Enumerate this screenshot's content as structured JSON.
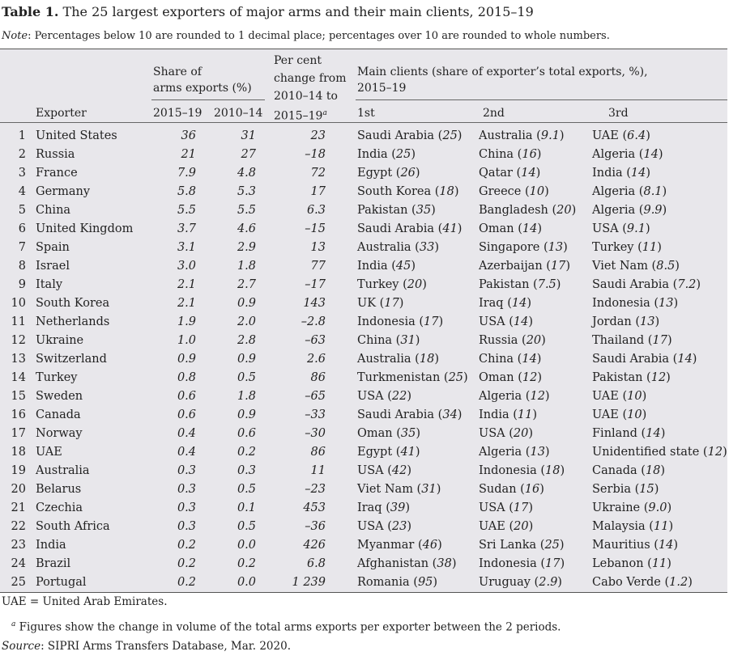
{
  "title": {
    "label": "Table 1.",
    "text": " The 25 largest exporters of major arms and their main clients, 2015–19"
  },
  "note": {
    "label": "Note",
    "text": ": Percentages below 10 are rounded to 1 decimal place; percentages over 10 are rounded to whole numbers."
  },
  "headers": {
    "share_group_line1": "Share of",
    "share_group_line2": "arms exports (%)",
    "change_line1": "Per cent",
    "change_line2": "change from",
    "change_line3": "2010–14 to",
    "change_line4": "2015–19",
    "change_sup": "a",
    "clients_line1": "Main clients (share of exporter’s total exports, %),",
    "clients_line2": "2015–19",
    "exporter": "Exporter",
    "period1": "2015–19",
    "period2": "2010–14",
    "first": "1st",
    "second": "2nd",
    "third": "3rd"
  },
  "rows": [
    {
      "rank": "1",
      "exporter": "United States",
      "share_2015_19": "36",
      "share_2010_14": "31",
      "change": "23",
      "c1": "Saudi Arabia",
      "p1": "25",
      "c2": "Australia",
      "p2": "9.1",
      "c3": "UAE",
      "p3": "6.4"
    },
    {
      "rank": "2",
      "exporter": "Russia",
      "share_2015_19": "21",
      "share_2010_14": "27",
      "change": "–18",
      "c1": "India",
      "p1": "25",
      "c2": "China",
      "p2": "16",
      "c3": "Algeria",
      "p3": "14"
    },
    {
      "rank": "3",
      "exporter": "France",
      "share_2015_19": "7.9",
      "share_2010_14": "4.8",
      "change": "72",
      "c1": "Egypt",
      "p1": "26",
      "c2": "Qatar",
      "p2": "14",
      "c3": "India",
      "p3": "14"
    },
    {
      "rank": "4",
      "exporter": "Germany",
      "share_2015_19": "5.8",
      "share_2010_14": "5.3",
      "change": "17",
      "c1": "South Korea",
      "p1": "18",
      "c2": "Greece",
      "p2": "10",
      "c3": "Algeria",
      "p3": "8.1"
    },
    {
      "rank": "5",
      "exporter": "China",
      "share_2015_19": "5.5",
      "share_2010_14": "5.5",
      "change": "6.3",
      "c1": "Pakistan",
      "p1": "35",
      "c2": "Bangladesh",
      "p2": "20",
      "c3": "Algeria",
      "p3": "9.9"
    },
    {
      "rank": "6",
      "exporter": "United Kingdom",
      "share_2015_19": "3.7",
      "share_2010_14": "4.6",
      "change": "–15",
      "c1": "Saudi Arabia",
      "p1": "41",
      "c2": "Oman",
      "p2": "14",
      "c3": "USA",
      "p3": "9.1"
    },
    {
      "rank": "7",
      "exporter": "Spain",
      "share_2015_19": "3.1",
      "share_2010_14": "2.9",
      "change": "13",
      "c1": "Australia",
      "p1": "33",
      "c2": "Singapore",
      "p2": "13",
      "c3": "Turkey",
      "p3": "11"
    },
    {
      "rank": "8",
      "exporter": "Israel",
      "share_2015_19": "3.0",
      "share_2010_14": "1.8",
      "change": "77",
      "c1": "India",
      "p1": "45",
      "c2": "Azerbaijan",
      "p2": "17",
      "c3": "Viet Nam",
      "p3": "8.5"
    },
    {
      "rank": "9",
      "exporter": "Italy",
      "share_2015_19": "2.1",
      "share_2010_14": "2.7",
      "change": "–17",
      "c1": "Turkey",
      "p1": "20",
      "c2": "Pakistan",
      "p2": "7.5",
      "c3": "Saudi Arabia",
      "p3": "7.2"
    },
    {
      "rank": "10",
      "exporter": "South Korea",
      "share_2015_19": "2.1",
      "share_2010_14": "0.9",
      "change": "143",
      "c1": "UK",
      "p1": "17",
      "c2": "Iraq",
      "p2": "14",
      "c3": "Indonesia",
      "p3": "13"
    },
    {
      "rank": "11",
      "exporter": "Netherlands",
      "share_2015_19": "1.9",
      "share_2010_14": "2.0",
      "change": "–2.8",
      "c1": "Indonesia",
      "p1": "17",
      "c2": "USA",
      "p2": "14",
      "c3": "Jordan",
      "p3": "13"
    },
    {
      "rank": "12",
      "exporter": "Ukraine",
      "share_2015_19": "1.0",
      "share_2010_14": "2.8",
      "change": "–63",
      "c1": "China",
      "p1": "31",
      "c2": "Russia",
      "p2": "20",
      "c3": "Thailand",
      "p3": "17"
    },
    {
      "rank": "13",
      "exporter": "Switzerland",
      "share_2015_19": "0.9",
      "share_2010_14": "0.9",
      "change": "2.6",
      "c1": "Australia",
      "p1": "18",
      "c2": "China",
      "p2": "14",
      "c3": "Saudi Arabia",
      "p3": "14"
    },
    {
      "rank": "14",
      "exporter": "Turkey",
      "share_2015_19": "0.8",
      "share_2010_14": "0.5",
      "change": "86",
      "c1": "Turkmenistan",
      "p1": "25",
      "c2": "Oman",
      "p2": "12",
      "c3": "Pakistan",
      "p3": "12"
    },
    {
      "rank": "15",
      "exporter": "Sweden",
      "share_2015_19": "0.6",
      "share_2010_14": "1.8",
      "change": "–65",
      "c1": "USA",
      "p1": "22",
      "c2": "Algeria",
      "p2": "12",
      "c3": "UAE",
      "p3": "10"
    },
    {
      "rank": "16",
      "exporter": "Canada",
      "share_2015_19": "0.6",
      "share_2010_14": "0.9",
      "change": "–33",
      "c1": "Saudi Arabia",
      "p1": "34",
      "c2": "India",
      "p2": "11",
      "c3": "UAE",
      "p3": "10"
    },
    {
      "rank": "17",
      "exporter": "Norway",
      "share_2015_19": "0.4",
      "share_2010_14": "0.6",
      "change": "–30",
      "c1": "Oman",
      "p1": "35",
      "c2": "USA",
      "p2": "20",
      "c3": "Finland",
      "p3": "14"
    },
    {
      "rank": "18",
      "exporter": "UAE",
      "share_2015_19": "0.4",
      "share_2010_14": "0.2",
      "change": "86",
      "c1": "Egypt",
      "p1": "41",
      "c2": "Algeria",
      "p2": "13",
      "c3": "Unidentified state",
      "p3": "12"
    },
    {
      "rank": "19",
      "exporter": "Australia",
      "share_2015_19": "0.3",
      "share_2010_14": "0.3",
      "change": "11",
      "c1": "USA",
      "p1": "42",
      "c2": "Indonesia",
      "p2": "18",
      "c3": "Canada",
      "p3": "18"
    },
    {
      "rank": "20",
      "exporter": "Belarus",
      "share_2015_19": "0.3",
      "share_2010_14": "0.5",
      "change": "–23",
      "c1": "Viet Nam",
      "p1": "31",
      "c2": "Sudan",
      "p2": "16",
      "c3": "Serbia",
      "p3": "15"
    },
    {
      "rank": "21",
      "exporter": "Czechia",
      "share_2015_19": "0.3",
      "share_2010_14": "0.1",
      "change": "453",
      "c1": "Iraq",
      "p1": "39",
      "c2": "USA",
      "p2": "17",
      "c3": "Ukraine",
      "p3": "9.0"
    },
    {
      "rank": "22",
      "exporter": "South Africa",
      "share_2015_19": "0.3",
      "share_2010_14": "0.5",
      "change": "–36",
      "c1": "USA",
      "p1": "23",
      "c2": "UAE",
      "p2": "20",
      "c3": "Malaysia",
      "p3": "11"
    },
    {
      "rank": "23",
      "exporter": "India",
      "share_2015_19": "0.2",
      "share_2010_14": "0.0",
      "change": "426",
      "c1": "Myanmar",
      "p1": "46",
      "c2": "Sri Lanka",
      "p2": "25",
      "c3": "Mauritius",
      "p3": "14"
    },
    {
      "rank": "24",
      "exporter": "Brazil",
      "share_2015_19": "0.2",
      "share_2010_14": "0.2",
      "change": "6.8",
      "c1": "Afghanistan",
      "p1": "38",
      "c2": "Indonesia",
      "p2": "17",
      "c3": "Lebanon",
      "p3": "11"
    },
    {
      "rank": "25",
      "exporter": "Portugal",
      "share_2015_19": "0.2",
      "share_2010_14": "0.0",
      "change": "1 239",
      "c1": "Romania",
      "p1": "95",
      "c2": "Uruguay",
      "p2": "2.9",
      "c3": "Cabo Verde",
      "p3": "1.2"
    }
  ],
  "footnotes": {
    "abbrev": "UAE = United Arab Emirates.",
    "fn_sup": "a",
    "fn_text": " Figures show the change in volume of the total arms exports per exporter between the 2 periods.",
    "source_label": "Source",
    "source_text": ": SIPRI Arms Transfers Database, Mar. 2020."
  }
}
